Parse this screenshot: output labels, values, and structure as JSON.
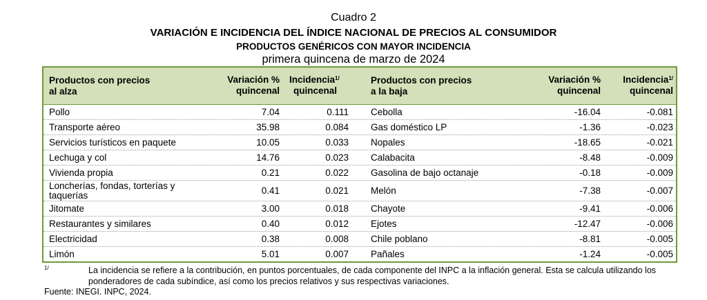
{
  "header": {
    "line1": "Cuadro 2",
    "line2": "VARIACIÓN E INCIDENCIA DEL ÍNDICE NACIONAL DE PRECIOS AL CONSUMIDOR",
    "line3": "PRODUCTOS GENÉRICOS CON MAYOR INCIDENCIA",
    "line4": "primera quincena de marzo de 2024"
  },
  "table": {
    "columns": {
      "up_product_1": "Productos con precios",
      "up_product_2": "al alza",
      "up_var_1": "Variación %",
      "up_var_2": "quincenal",
      "up_inc_1": "Incidencia",
      "up_inc_sup": "1/",
      "up_inc_2": "quincenal",
      "down_product_1": "Productos con precios",
      "down_product_2": "a la baja",
      "down_var_1": "Variación %",
      "down_var_2": "quincenal",
      "down_inc_1": "Incidencia",
      "down_inc_sup": "1/",
      "down_inc_2": "quincenal"
    },
    "rows": [
      {
        "up_name": "Pollo",
        "up_var": "7.04",
        "up_inc": "0.111",
        "down_name": "Cebolla",
        "down_var": "-16.04",
        "down_inc": "-0.081"
      },
      {
        "up_name": "Transporte aéreo",
        "up_var": "35.98",
        "up_inc": "0.084",
        "down_name": "Gas doméstico LP",
        "down_var": "-1.36",
        "down_inc": "-0.023"
      },
      {
        "up_name": "Servicios turísticos en paquete",
        "up_var": "10.05",
        "up_inc": "0.033",
        "down_name": "Nopales",
        "down_var": "-18.65",
        "down_inc": "-0.021"
      },
      {
        "up_name": "Lechuga y col",
        "up_var": "14.76",
        "up_inc": "0.023",
        "down_name": "Calabacita",
        "down_var": "-8.48",
        "down_inc": "-0.009"
      },
      {
        "up_name": "Vivienda propia",
        "up_var": "0.21",
        "up_inc": "0.022",
        "down_name": "Gasolina de bajo octanaje",
        "down_var": "-0.18",
        "down_inc": "-0.009"
      },
      {
        "up_name": "Loncherías, fondas, torterías y taquerías",
        "up_var": "0.41",
        "up_inc": "0.021",
        "down_name": "Melón",
        "down_var": "-7.38",
        "down_inc": "-0.007"
      },
      {
        "up_name": "Jitomate",
        "up_var": "3.00",
        "up_inc": "0.018",
        "down_name": "Chayote",
        "down_var": "-9.41",
        "down_inc": "-0.006"
      },
      {
        "up_name": "Restaurantes y similares",
        "up_var": "0.40",
        "up_inc": "0.012",
        "down_name": "Ejotes",
        "down_var": "-12.47",
        "down_inc": "-0.006"
      },
      {
        "up_name": "Electricidad",
        "up_var": "0.38",
        "up_inc": "0.008",
        "down_name": "Chile poblano",
        "down_var": "-8.81",
        "down_inc": "-0.005"
      },
      {
        "up_name": "Limón",
        "up_var": "5.01",
        "up_inc": "0.007",
        "down_name": "Pañales",
        "down_var": "-1.24",
        "down_inc": "-0.005"
      }
    ]
  },
  "footnote": {
    "mark": "1/",
    "text": "La incidencia se refiere a la contribución, en puntos porcentuales, de cada componente del INPC a la inflación general. Esta se calcula utilizando los ponderadores de cada subíndice, así como los precios relativos y sus respectivas variaciones."
  },
  "source": "Fuente: INEGI. INPC, 2024."
}
